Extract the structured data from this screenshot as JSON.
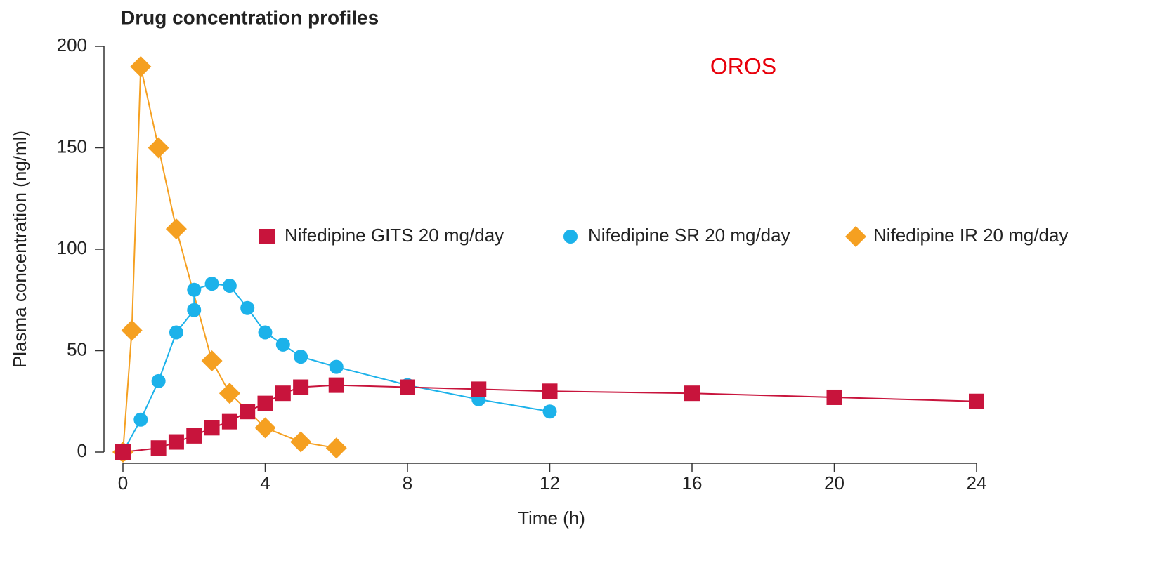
{
  "chart_data": {
    "type": "line",
    "title": "Drug concentration profiles",
    "annotation": "OROS",
    "x_label": "Time (h)",
    "y_label": "Plasma concentration (ng/ml)",
    "xlim": [
      0,
      24
    ],
    "xticks": [
      0,
      4,
      8,
      12,
      16,
      20,
      24
    ],
    "ylim": [
      0,
      200
    ],
    "yticks": [
      0,
      50,
      100,
      150,
      200
    ],
    "grid": false,
    "series": [
      {
        "name": "Nifedipine GITS 20 mg/day",
        "color": "#c8143c",
        "marker": "square",
        "x": [
          0,
          1,
          1.5,
          2,
          2.5,
          3,
          3.5,
          4,
          4.5,
          5,
          6,
          8,
          10,
          12,
          16,
          20,
          24
        ],
        "values": [
          0,
          2,
          5,
          8,
          12,
          15,
          20,
          24,
          29,
          32,
          33,
          32,
          31,
          30,
          29,
          27,
          25
        ]
      },
      {
        "name": "Nifedipine SR 20 mg/day",
        "color": "#1cb2ea",
        "marker": "circle",
        "x": [
          0,
          0.5,
          1,
          1.5,
          2,
          2,
          2.5,
          3,
          3.5,
          4,
          4.5,
          5,
          6,
          8,
          10,
          12
        ],
        "values": [
          0,
          16,
          35,
          59,
          70,
          80,
          83,
          82,
          71,
          59,
          53,
          47,
          42,
          33,
          26,
          20
        ]
      },
      {
        "name": "Nifedipine IR 20 mg/day",
        "color": "#f5a021",
        "marker": "diamond",
        "x": [
          0,
          0.25,
          0.5,
          1,
          1.5,
          2.5,
          3,
          4,
          5,
          6
        ],
        "values": [
          0,
          60,
          190,
          150,
          110,
          45,
          29,
          12,
          5,
          2
        ]
      }
    ]
  }
}
